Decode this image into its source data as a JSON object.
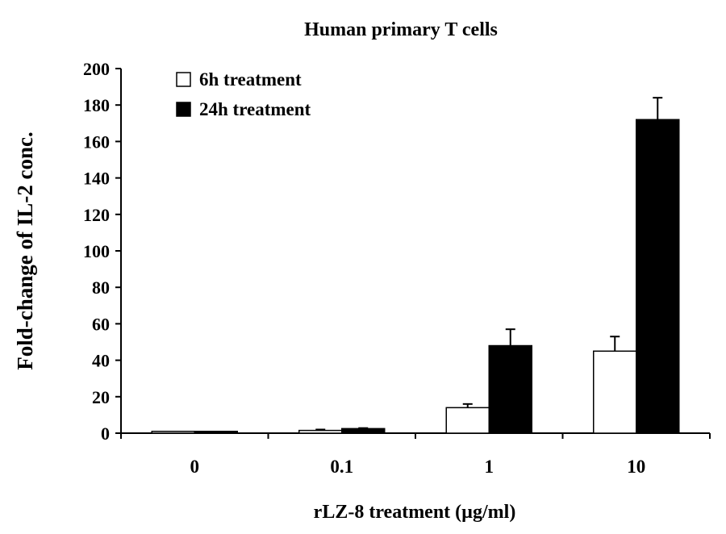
{
  "chart_data": {
    "type": "bar",
    "title": "Human primary T cells",
    "xlabel": "rLZ-8 treatment (µg/ml)",
    "ylabel": "Fold-change of IL-2 conc.",
    "categories": [
      "0",
      "0.1",
      "1",
      "10"
    ],
    "ylim": [
      0,
      200
    ],
    "yticks": [
      0,
      20,
      40,
      60,
      80,
      100,
      120,
      140,
      160,
      180,
      200
    ],
    "grid": false,
    "legend_position": "top-left",
    "series": [
      {
        "name": "6h treatment",
        "color": "#ffffff",
        "values": [
          1,
          1.5,
          14,
          45
        ],
        "errors": [
          0,
          0.5,
          2,
          8
        ]
      },
      {
        "name": "24h treatment",
        "color": "#000000",
        "values": [
          1,
          2.5,
          48,
          172
        ],
        "errors": [
          0,
          0.3,
          9,
          12
        ]
      }
    ]
  }
}
